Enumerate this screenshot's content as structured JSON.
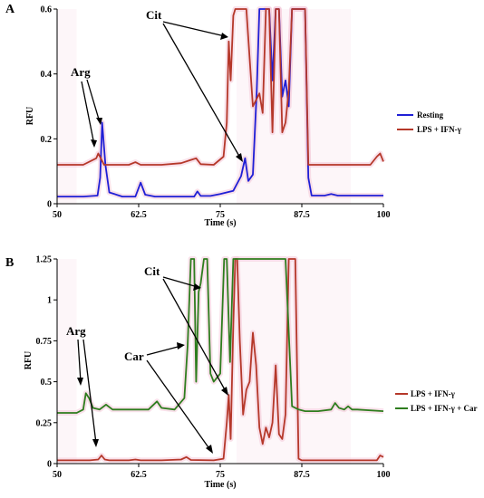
{
  "chart_data": [
    {
      "panel": "A",
      "type": "line",
      "xlabel": "Time (s)",
      "ylabel": "RFU",
      "xlim": [
        50,
        100
      ],
      "ylim": [
        0,
        0.6
      ],
      "xticks": [
        "50",
        "62.5",
        "75",
        "87.5",
        "100"
      ],
      "yticks": [
        "0",
        "0.2",
        "0.4",
        "0.6"
      ],
      "legend": {
        "placement": "right"
      },
      "series": [
        {
          "name": "Resting",
          "color": "#1f1fd6",
          "x": [
            50,
            54,
            56.2,
            56.6,
            56.9,
            57.4,
            58,
            60,
            62,
            62.8,
            63.5,
            65,
            68,
            71,
            71.5,
            72,
            73.5,
            75,
            77,
            78.2,
            78.8,
            79.3,
            80,
            80.6,
            81,
            81.5,
            82,
            82.5,
            83,
            83.5,
            84,
            84.5,
            85,
            85.5,
            86,
            86.5,
            87,
            87.5,
            88,
            88.5,
            89,
            90,
            91,
            92,
            93,
            95,
            98,
            100
          ],
          "y": [
            0.022,
            0.022,
            0.025,
            0.08,
            0.25,
            0.12,
            0.035,
            0.022,
            0.022,
            0.065,
            0.028,
            0.022,
            0.022,
            0.022,
            0.038,
            0.024,
            0.024,
            0.03,
            0.04,
            0.085,
            0.14,
            0.07,
            0.09,
            0.35,
            0.6,
            0.6,
            0.6,
            0.6,
            0.38,
            0.6,
            0.6,
            0.33,
            0.38,
            0.3,
            0.6,
            0.6,
            0.6,
            0.6,
            0.6,
            0.08,
            0.025,
            0.025,
            0.025,
            0.03,
            0.025,
            0.025,
            0.025,
            0.025
          ]
        },
        {
          "name": "LPS + IFN-γ",
          "color": "#b5382a",
          "x": [
            50,
            54,
            56,
            56.3,
            56.7,
            57.2,
            58,
            61,
            62,
            62.8,
            66,
            69,
            70.5,
            71.3,
            72,
            74,
            75.5,
            76,
            76.3,
            76.6,
            77,
            77.3,
            77.6,
            78,
            79,
            80,
            81,
            81.5,
            82,
            82.5,
            83,
            83.5,
            84,
            84.5,
            85,
            85.5,
            86,
            86.5,
            87,
            88,
            88.5,
            89,
            91,
            94,
            98,
            99,
            99.5,
            100
          ],
          "y": [
            0.12,
            0.12,
            0.14,
            0.155,
            0.14,
            0.12,
            0.12,
            0.12,
            0.128,
            0.12,
            0.12,
            0.125,
            0.135,
            0.14,
            0.122,
            0.12,
            0.145,
            0.25,
            0.5,
            0.38,
            0.58,
            0.6,
            0.6,
            0.6,
            0.6,
            0.3,
            0.34,
            0.28,
            0.6,
            0.6,
            0.22,
            0.6,
            0.6,
            0.22,
            0.25,
            0.35,
            0.6,
            0.6,
            0.6,
            0.6,
            0.12,
            0.12,
            0.12,
            0.12,
            0.12,
            0.145,
            0.155,
            0.13
          ]
        }
      ],
      "annotations": [
        "Arg",
        "Cit"
      ]
    },
    {
      "panel": "B",
      "type": "line",
      "xlabel": "Time (s)",
      "ylabel": "RFU",
      "xlim": [
        50,
        100
      ],
      "ylim": [
        0,
        1.25
      ],
      "xticks": [
        "50",
        "62.5",
        "75",
        "87.5",
        "100"
      ],
      "yticks": [
        "0",
        "0.25",
        "0.5",
        "0.75",
        "1",
        "1.25"
      ],
      "legend": {
        "placement": "right"
      },
      "series": [
        {
          "name": "LPS + IFN-γ",
          "color": "#b5382a",
          "x": [
            50,
            55,
            56.3,
            56.8,
            57.3,
            58,
            61,
            62,
            62.8,
            66,
            69,
            69.8,
            70.5,
            74,
            75.5,
            76,
            76.3,
            76.6,
            77,
            77.3,
            77.6,
            78,
            78.5,
            79,
            79.5,
            80,
            80.5,
            81,
            81.5,
            82,
            82.5,
            83,
            83.5,
            84,
            84.5,
            85,
            85.5,
            86,
            86.5,
            87,
            87.5,
            88,
            92,
            96,
            99,
            99.5,
            100
          ],
          "y": [
            0.02,
            0.02,
            0.025,
            0.05,
            0.025,
            0.02,
            0.02,
            0.025,
            0.02,
            0.02,
            0.025,
            0.04,
            0.022,
            0.02,
            0.03,
            0.25,
            0.42,
            0.15,
            0.85,
            1.25,
            1.25,
            0.75,
            0.3,
            0.45,
            0.5,
            0.8,
            0.6,
            0.22,
            0.12,
            0.22,
            0.16,
            0.25,
            0.6,
            0.18,
            0.15,
            0.3,
            1.25,
            1.25,
            1.25,
            0.03,
            0.02,
            0.02,
            0.02,
            0.02,
            0.02,
            0.05,
            0.04
          ]
        },
        {
          "name": "LPS + IFN-γ + Car",
          "color": "#2e7d1e",
          "x": [
            50,
            53,
            54,
            54.4,
            54.9,
            55.5,
            56.5,
            57.5,
            58.5,
            60,
            64,
            65.3,
            66,
            68,
            69.5,
            70,
            70.5,
            71,
            71.3,
            71.7,
            72,
            72.5,
            73,
            73.5,
            74,
            75,
            75.6,
            76,
            76.5,
            77,
            77.5,
            78,
            78.5,
            79,
            80,
            81,
            82,
            83,
            84,
            85,
            86,
            87,
            88,
            90,
            92,
            92.6,
            93.2,
            94,
            94.6,
            95.2,
            96,
            100
          ],
          "y": [
            0.31,
            0.31,
            0.33,
            0.43,
            0.4,
            0.34,
            0.33,
            0.36,
            0.33,
            0.33,
            0.33,
            0.38,
            0.34,
            0.33,
            0.4,
            0.72,
            1.25,
            1.25,
            0.5,
            1.05,
            1.1,
            1.25,
            1.25,
            0.55,
            0.5,
            0.55,
            1.25,
            1.25,
            0.62,
            1.25,
            1.25,
            1.25,
            1.25,
            1.25,
            1.25,
            1.25,
            1.25,
            1.25,
            1.25,
            1.25,
            0.35,
            0.33,
            0.32,
            0.32,
            0.33,
            0.37,
            0.34,
            0.33,
            0.35,
            0.33,
            0.33,
            0.32
          ]
        }
      ],
      "annotations": [
        "Arg",
        "Cit",
        "Car"
      ]
    }
  ]
}
